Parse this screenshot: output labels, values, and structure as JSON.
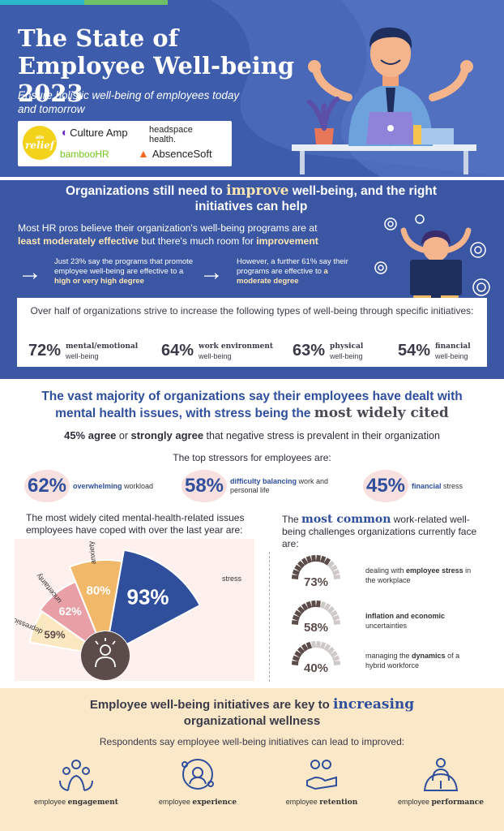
{
  "colors": {
    "header_bg": "#3d5cab",
    "navy": "#2f4f9c",
    "cream": "#fde6b4",
    "pink": "#f8e0de",
    "beige": "#fbe8c9",
    "orange": "#f2b86a",
    "rose": "#e8a0a6",
    "dark": "#5b4b49"
  },
  "header": {
    "title": "The State of Employee Well-being 2023",
    "subtitle": "Ensure holistic well-being of employees today and tomorrow",
    "logos": [
      "relief",
      "Culture Amp",
      "headspace health.",
      "bambooHR",
      "AbsenceSoft"
    ],
    "logo_marks": {
      "relief_small": "ade"
    }
  },
  "s2": {
    "title_a": "Organizations still need to ",
    "title_big": "improve",
    "title_b": " well-being, and the right initiatives can help",
    "lead_a": "Most HR pros believe their organization's well-being programs are at ",
    "lead_b": "least moderately effective",
    "lead_c": " but there's much room for ",
    "lead_d": "improvement",
    "note1_a": "Just 23% say the programs that promote employee well-being are effective to a ",
    "note1_b": "high or very high degree",
    "note2_a": "However, a further 61% say their programs are effective to ",
    "note2_b": "a moderate degree",
    "types_head": "Over half of organizations strive to increase the following types of well-being through specific initiatives:",
    "types": [
      {
        "pct": "72%",
        "bold": "mental/emotional",
        "rest": "well-being"
      },
      {
        "pct": "64%",
        "bold": "work environment",
        "rest": "well-being"
      },
      {
        "pct": "63%",
        "bold": "physical",
        "rest": "well-being"
      },
      {
        "pct": "54%",
        "bold": "financial",
        "rest": "well-being"
      }
    ]
  },
  "s3": {
    "title_a": "The vast majority of organizations say their employees have dealt with mental health issues, with stress being the ",
    "title_big": "most widely cited",
    "agree_a": "45% agree",
    "agree_b": " or ",
    "agree_c": "strongly agree",
    "agree_d": " that negative stress is prevalent in their organization",
    "top": "The top stressors for employees are:",
    "stressors": [
      {
        "pct": "62%",
        "bold": "overwhelming",
        "rest": " workload"
      },
      {
        "pct": "58%",
        "bold": "difficulty balancing",
        "rest": " work and personal life"
      },
      {
        "pct": "45%",
        "bold": "financial",
        "rest": " stress"
      }
    ],
    "issues_head": "The most widely cited mental-health-related issues employees have coped with over the last year are:",
    "issues": [
      {
        "label": "depression",
        "pct": "59%",
        "value": 59
      },
      {
        "label": "uncertainty",
        "pct": "62%",
        "value": 62
      },
      {
        "label": "anxiety",
        "pct": "80%",
        "value": 80
      },
      {
        "label": "stress",
        "pct": "93%",
        "value": 93
      }
    ],
    "chal_head_a": "The ",
    "chal_head_b": "most common",
    "chal_head_c": " work-related well-being challenges organizations currently face are:",
    "challenges": [
      {
        "pct": "73%",
        "value": 73,
        "a": "dealing with ",
        "b": "employee stress",
        "c": " in the workplace"
      },
      {
        "pct": "58%",
        "value": 58,
        "a": "",
        "b": "inflation and economic",
        "c": " uncertainties"
      },
      {
        "pct": "40%",
        "value": 40,
        "a": "managing the ",
        "b": "dynamics",
        "c": " of a hybrid workforce"
      }
    ]
  },
  "s4": {
    "title_a": "Employee well-being initiatives are key to ",
    "title_big": "increasing",
    "title_b": " organizational wellness",
    "sub": "Respondents say employee well-being initiatives can lead to improved:",
    "benefits": [
      {
        "a": "employee ",
        "b": "engagement",
        "icon": "engagement-icon"
      },
      {
        "a": "employee ",
        "b": "experience",
        "icon": "experience-icon"
      },
      {
        "a": "employee ",
        "b": "retention",
        "icon": "retention-icon"
      },
      {
        "a": "employee ",
        "b": "performance",
        "icon": "performance-icon"
      }
    ]
  }
}
